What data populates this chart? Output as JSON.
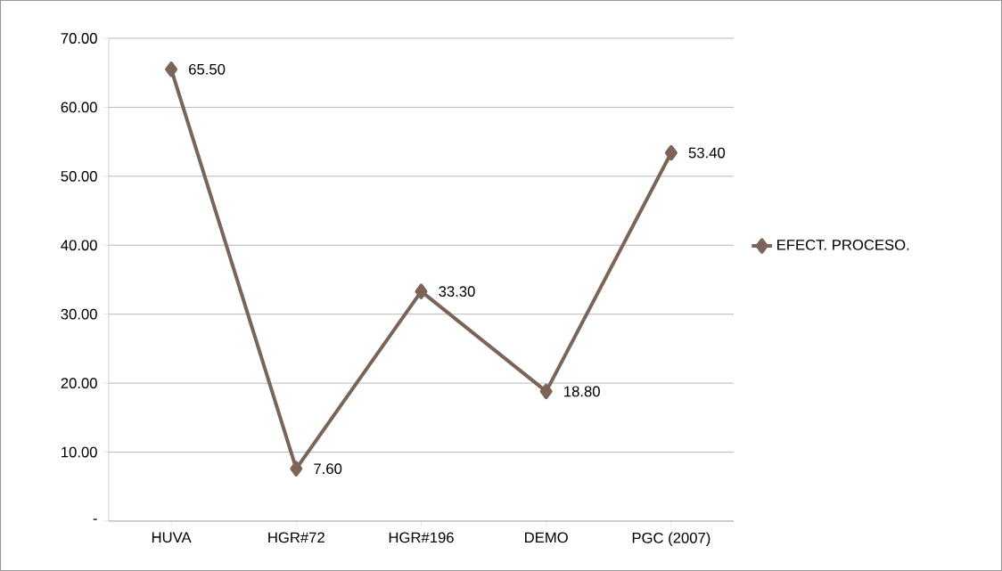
{
  "chart_data": {
    "type": "line",
    "categories": [
      "HUVA",
      "HGR#72",
      "HGR#196",
      "DEMO",
      "PGC (2007)"
    ],
    "series": [
      {
        "name": "EFECT. PROCESO.",
        "color": "#7b6458",
        "values": [
          65.5,
          7.6,
          33.3,
          18.8,
          53.4
        ],
        "value_labels": [
          "65.50",
          "7.60",
          "33.30",
          "18.80",
          "53.40"
        ]
      }
    ],
    "ylim": [
      0,
      70
    ],
    "yticks": [
      {
        "value": 0,
        "label": "-"
      },
      {
        "value": 10,
        "label": "10.00"
      },
      {
        "value": 20,
        "label": "20.00"
      },
      {
        "value": 30,
        "label": "30.00"
      },
      {
        "value": 40,
        "label": "40.00"
      },
      {
        "value": 50,
        "label": "50.00"
      },
      {
        "value": 60,
        "label": "60.00"
      },
      {
        "value": 70,
        "label": "70.00"
      }
    ],
    "grid": "y",
    "legend": "right",
    "marker": "diamond",
    "line_style": "solid"
  }
}
